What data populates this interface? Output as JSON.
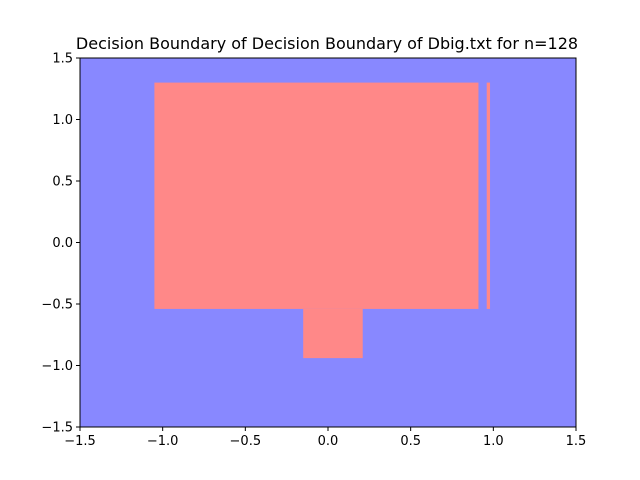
{
  "chart_data": {
    "type": "heatmap",
    "title": "Decision Boundary of Decision Boundary of Dbig.txt for n=128",
    "xlabel": "",
    "ylabel": "",
    "xlim": [
      -1.5,
      1.5
    ],
    "ylim": [
      -1.5,
      1.5
    ],
    "grid": false,
    "legend": "none",
    "xticks": [
      -1.5,
      -1.0,
      -0.5,
      0.0,
      0.5,
      1.0,
      1.5
    ],
    "yticks": [
      -1.5,
      -1.0,
      -0.5,
      0.0,
      0.5,
      1.0,
      1.5
    ],
    "xtick_labels": [
      "−1.5",
      "−1.0",
      "−0.5",
      "0.0",
      "0.5",
      "1.0",
      "1.5"
    ],
    "ytick_labels": [
      "−1.5",
      "−1.0",
      "−0.5",
      "0.0",
      "0.5",
      "1.0",
      "1.5"
    ],
    "background_class_color": "#8888ff",
    "regions": [
      {
        "class": 1,
        "color": "#ff8888",
        "x": [
          -1.05,
          0.91
        ],
        "y": [
          -0.54,
          1.3
        ]
      },
      {
        "class": 1,
        "color": "#ff8888",
        "x": [
          -0.15,
          0.21
        ],
        "y": [
          -0.94,
          -0.54
        ]
      },
      {
        "class": 1,
        "color": "#ff8888",
        "x": [
          0.96,
          0.98
        ],
        "y": [
          -0.54,
          1.3
        ]
      }
    ]
  }
}
